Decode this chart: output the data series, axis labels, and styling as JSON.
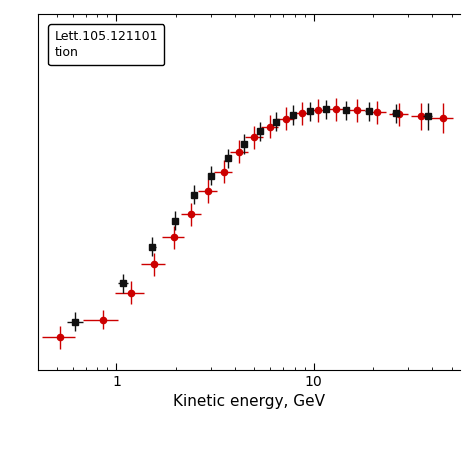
{
  "xlabel": "Kinetic energy, GeV",
  "ylabel": "",
  "legend_text1": "Lett.105.121101",
  "legend_text2": "tion",
  "xlim": [
    0.4,
    55
  ],
  "ylim": [
    0.01,
    0.38
  ],
  "red_x": [
    0.52,
    0.85,
    1.18,
    1.55,
    1.95,
    2.4,
    2.9,
    3.5,
    4.2,
    5.0,
    6.0,
    7.2,
    8.7,
    10.5,
    13.0,
    16.5,
    21.0,
    27.0,
    35.0,
    45.0
  ],
  "red_xerr_lo": [
    0.1,
    0.17,
    0.2,
    0.22,
    0.25,
    0.28,
    0.32,
    0.37,
    0.43,
    0.52,
    0.62,
    0.75,
    0.9,
    1.1,
    1.4,
    1.8,
    2.3,
    3.0,
    4.0,
    6.0
  ],
  "red_xerr_hi": [
    0.1,
    0.17,
    0.2,
    0.22,
    0.25,
    0.28,
    0.32,
    0.37,
    0.43,
    0.52,
    0.62,
    0.75,
    0.9,
    1.1,
    1.4,
    1.8,
    2.3,
    3.0,
    4.0,
    6.0
  ],
  "red_y": [
    0.044,
    0.062,
    0.09,
    0.12,
    0.148,
    0.172,
    0.196,
    0.216,
    0.237,
    0.252,
    0.263,
    0.271,
    0.277,
    0.28,
    0.281,
    0.28,
    0.278,
    0.276,
    0.274,
    0.272
  ],
  "red_yerr_lo": [
    0.012,
    0.01,
    0.012,
    0.012,
    0.012,
    0.012,
    0.012,
    0.012,
    0.012,
    0.012,
    0.012,
    0.012,
    0.012,
    0.012,
    0.012,
    0.012,
    0.012,
    0.012,
    0.014,
    0.016
  ],
  "red_yerr_hi": [
    0.012,
    0.01,
    0.012,
    0.012,
    0.012,
    0.012,
    0.012,
    0.012,
    0.012,
    0.012,
    0.012,
    0.012,
    0.012,
    0.012,
    0.012,
    0.012,
    0.012,
    0.012,
    0.014,
    0.016
  ],
  "black_x": [
    0.62,
    1.08,
    1.52,
    1.97,
    2.47,
    3.02,
    3.67,
    4.42,
    5.32,
    6.42,
    7.82,
    9.52,
    11.5,
    14.5,
    19.0,
    26.0,
    38.0
  ],
  "black_xerr_lo": [
    0.06,
    0.06,
    0.06,
    0.06,
    0.06,
    0.06,
    0.06,
    0.06,
    0.06,
    0.06,
    0.06,
    0.06,
    0.3,
    0.5,
    0.7,
    1.0,
    2.0
  ],
  "black_xerr_hi": [
    0.06,
    0.06,
    0.06,
    0.06,
    0.06,
    0.06,
    0.06,
    0.06,
    0.06,
    0.06,
    0.06,
    0.06,
    0.3,
    0.5,
    0.7,
    1.0,
    2.0
  ],
  "black_y": [
    0.06,
    0.1,
    0.138,
    0.165,
    0.192,
    0.212,
    0.23,
    0.245,
    0.258,
    0.268,
    0.275,
    0.279,
    0.281,
    0.28,
    0.279,
    0.277,
    0.274
  ],
  "black_yerr_lo": [
    0.01,
    0.01,
    0.01,
    0.01,
    0.01,
    0.01,
    0.01,
    0.01,
    0.01,
    0.01,
    0.01,
    0.01,
    0.01,
    0.01,
    0.01,
    0.01,
    0.014
  ],
  "black_yerr_hi": [
    0.01,
    0.01,
    0.01,
    0.01,
    0.01,
    0.01,
    0.01,
    0.01,
    0.01,
    0.01,
    0.01,
    0.01,
    0.01,
    0.01,
    0.01,
    0.01,
    0.014
  ],
  "red_color": "#cc0000",
  "black_color": "#111111",
  "bg_color": "#ffffff",
  "figwidth": 4.74,
  "figheight": 4.74,
  "dpi": 100
}
